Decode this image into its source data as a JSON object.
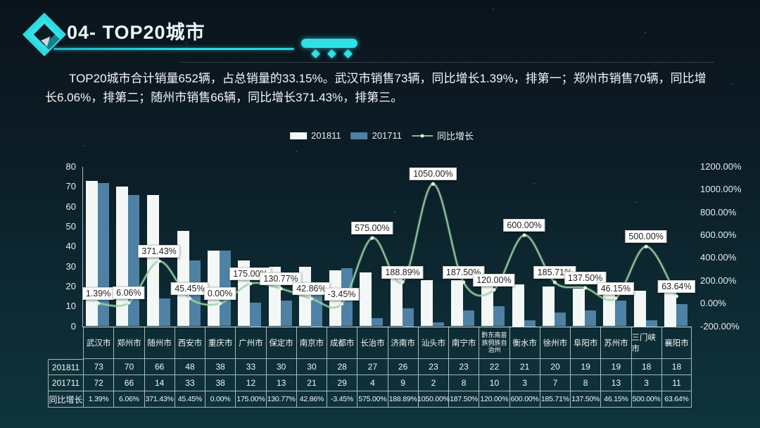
{
  "header": {
    "title": "04- TOP20城市"
  },
  "summary": "TOP20城市合计销量652辆，占总销量的33.15%。武汉市销售73辆，同比增长1.39%，排第一；郑州市销售70辆，同比增长6.06%，排第二；随州市销售66辆，同比增长371.43%，排第三。",
  "colors": {
    "accent_cyan": "#2fdce2",
    "bar_201811": "#f3f7f5",
    "bar_201711": "#4e81a4",
    "line_growth": "#9cd3a6",
    "label_box_bg": "#ffffff",
    "label_text": "#222222",
    "grid_line": "rgba(230,242,246,0.7)"
  },
  "legend": {
    "items": [
      {
        "label": "201811",
        "type": "bar",
        "color": "#f3f7f5"
      },
      {
        "label": "201711",
        "type": "bar",
        "color": "#4e81a4"
      },
      {
        "label": "同比增长",
        "type": "line",
        "color": "#7dbb8f"
      }
    ]
  },
  "chart_data": {
    "type": "combo-bar-line",
    "categories": [
      "武汉市",
      "郑州市",
      "随州市",
      "西安市",
      "重庆市",
      "广州市",
      "保定市",
      "南京市",
      "成都市",
      "长治市",
      "济南市",
      "汕头市",
      "南宁市",
      "黔东南苗族侗族自治州",
      "衡水市",
      "徐州市",
      "阜阳市",
      "苏州市",
      "三门峡市",
      "襄阳市"
    ],
    "series": [
      {
        "name": "201811",
        "type": "bar",
        "axis": "left",
        "color": "#f3f7f5",
        "values": [
          73,
          70,
          66,
          48,
          38,
          33,
          30,
          30,
          28,
          27,
          26,
          23,
          23,
          22,
          21,
          20,
          19,
          19,
          18,
          18
        ]
      },
      {
        "name": "201711",
        "type": "bar",
        "axis": "left",
        "color": "#4e81a4",
        "values": [
          72,
          66,
          14,
          33,
          38,
          12,
          13,
          21,
          29,
          4,
          9,
          2,
          8,
          10,
          3,
          7,
          8,
          13,
          3,
          11
        ]
      },
      {
        "name": "同比增长",
        "type": "line",
        "axis": "right",
        "color": "#9cd3a6",
        "values": [
          1.39,
          6.06,
          371.43,
          45.45,
          0,
          175,
          130.77,
          42.86,
          -3.45,
          575,
          188.89,
          1050,
          187.5,
          120,
          600,
          185.71,
          137.5,
          46.15,
          500,
          63.64
        ],
        "labels": [
          "1.39%",
          "6.06%",
          "371.43%",
          "45.45%",
          "0.00%",
          "175.00%",
          "130.77%",
          "42.86%",
          "-3.45%",
          "575.00%",
          "188.89%",
          "1050.00%",
          "187.50%",
          "120.00%",
          "600.00%",
          "185.71%",
          "137.50%",
          "46.15%",
          "500.00%",
          "63.64%"
        ]
      }
    ],
    "left_axis": {
      "min": 0,
      "max": 80,
      "step": 10,
      "ticks": [
        "80",
        "70",
        "60",
        "50",
        "40",
        "30",
        "20",
        "10",
        "0"
      ]
    },
    "right_axis": {
      "min": -200,
      "max": 1200,
      "step": 200,
      "ticks": [
        "1200.00%",
        "1000.00%",
        "800.00%",
        "600.00%",
        "400.00%",
        "200.00%",
        "0.00%",
        "-200.00%"
      ]
    },
    "grid": false,
    "legend_position": "top-center",
    "title": ""
  },
  "table": {
    "rows": [
      {
        "header": "201811",
        "cells": [
          "73",
          "70",
          "66",
          "48",
          "38",
          "33",
          "30",
          "30",
          "28",
          "27",
          "26",
          "23",
          "23",
          "22",
          "21",
          "20",
          "19",
          "19",
          "18",
          "18"
        ]
      },
      {
        "header": "201711",
        "cells": [
          "72",
          "66",
          "14",
          "33",
          "38",
          "12",
          "13",
          "21",
          "29",
          "4",
          "9",
          "2",
          "8",
          "10",
          "3",
          "7",
          "8",
          "13",
          "3",
          "11"
        ]
      },
      {
        "header": "同比增长",
        "cells": [
          "1.39%",
          "6.06%",
          "371.43%",
          "45.45%",
          "0.00%",
          "175.00%",
          "130.77%",
          "42.86%",
          "-3.45%",
          "575.00%",
          "188.89%",
          "1050.00%",
          "187.50%",
          "120.00%",
          "600.00%",
          "185.71%",
          "137.50%",
          "46.15%",
          "500.00%",
          "63.64%"
        ]
      }
    ]
  }
}
